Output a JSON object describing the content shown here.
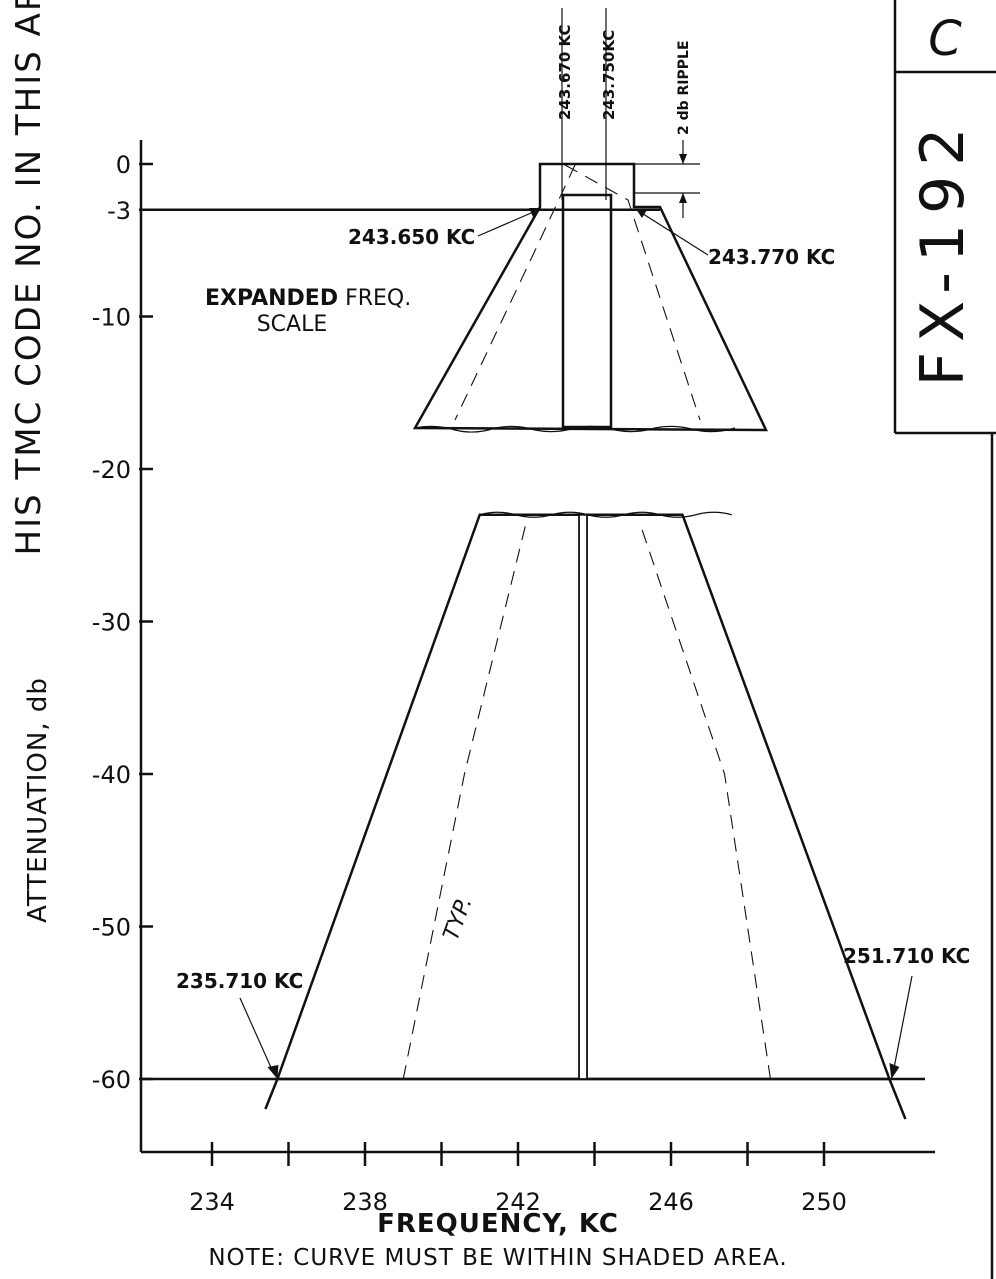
{
  "chart_data": {
    "type": "area",
    "xlabel": "FREQUENCY, KC",
    "ylabel": "ATTENUATION, db",
    "x_ticks": [
      234,
      238,
      242,
      246,
      250
    ],
    "y_ticks": [
      0,
      -3,
      -10,
      -20,
      -30,
      -40,
      -50,
      -60
    ],
    "y_tick_labels": [
      "0",
      "-3",
      "-10",
      "-20",
      "-30",
      "-40",
      "-50",
      "-60"
    ],
    "xlim": [
      232.5,
      253.5
    ],
    "ylim": [
      -65,
      0
    ],
    "grid": false,
    "note": "NOTE: CURVE MUST BE WITHIN SHADED AREA.",
    "side_label": "HIS TMC CODE NO. IN THIS AREA.",
    "doc_number": "FX-192",
    "revision": "C",
    "main_envelope": {
      "points_left_60db": 235.71,
      "points_right_60db": 251.71,
      "top_db": -23,
      "top_left_freq": 241.0,
      "top_right_freq": 246.3,
      "center_freq": 243.7,
      "label_left": "235.710 KC",
      "label_right": "251.710 KC",
      "typ_label": "TYP."
    },
    "expanded_scale": {
      "title_bold": "EXPANDED",
      "title_rest": " FREQ.",
      "title_line2": "SCALE",
      "labels": {
        "left_3db": "243.650 KC",
        "right_3db": "243.770 KC",
        "top_left": "243.670 KC",
        "top_right": "243.750KC",
        "ripple": "2 db RIPPLE"
      },
      "bottom_db": -17
    },
    "colors": {
      "ink": "#111111",
      "paper": "#ffffff"
    }
  }
}
